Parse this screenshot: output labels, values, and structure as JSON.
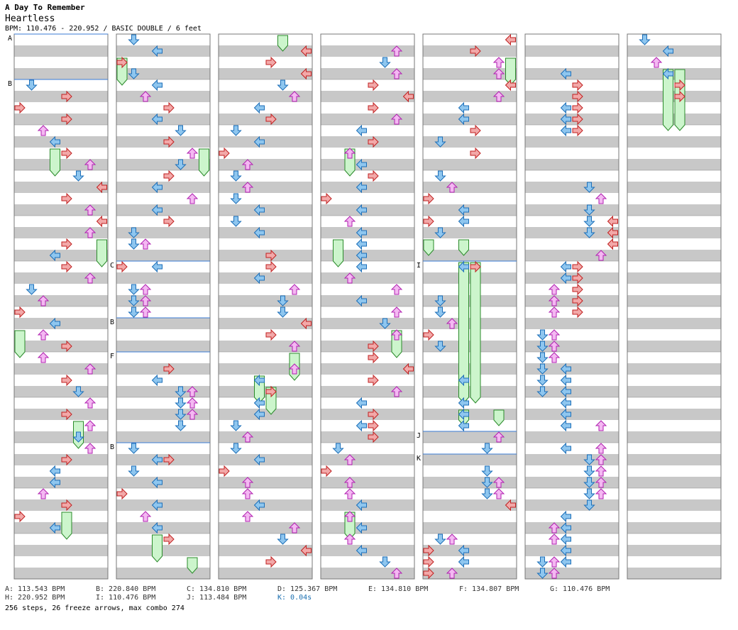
{
  "header": {
    "artist": "A Day To Remember",
    "title": "Heartless",
    "bpm_info": "BPM: 110.476 - 220.952 / BASIC DOUBLE / 6 feet"
  },
  "colors": {
    "stripe": "#c8c8c8",
    "border": "#777777",
    "marker_line": "#3a7bd5",
    "arrow_red": "#f2a8a8",
    "arrow_red_stroke": "#c02020",
    "arrow_blue": "#8ec6ef",
    "arrow_blue_stroke": "#1d6fb8",
    "arrow_pink": "#f4b8f2",
    "arrow_pink_stroke": "#b020b0",
    "freeze": "#ccf5cc",
    "freeze_stroke": "#2a8a2a"
  },
  "columns": [
    {
      "markers": [
        {
          "label": "A",
          "beat": 0
        },
        {
          "label": "B",
          "beat": 4
        }
      ],
      "notes": [
        [
          4.5,
          1
        ],
        [
          5.5,
          4
        ],
        [
          6.5,
          0
        ],
        [
          7.5,
          4
        ],
        [
          8.5,
          2
        ],
        [
          9.5,
          3
        ],
        [
          10.5,
          4
        ],
        [
          11.5,
          6
        ],
        [
          12.5,
          5
        ],
        [
          13.5,
          7
        ],
        [
          14.5,
          4
        ],
        [
          15.5,
          6
        ],
        [
          16.5,
          7
        ],
        [
          17.5,
          6
        ],
        [
          18.5,
          4
        ],
        [
          19.5,
          3
        ],
        [
          20.5,
          4
        ],
        [
          21.5,
          6
        ],
        [
          22.5,
          1
        ],
        [
          23.5,
          2
        ],
        [
          24.5,
          0
        ],
        [
          25.5,
          3
        ],
        [
          26.5,
          2
        ],
        [
          27.5,
          4
        ],
        [
          28.5,
          2
        ],
        [
          29.5,
          6
        ],
        [
          30.5,
          4
        ],
        [
          31.5,
          5
        ],
        [
          32.5,
          6
        ],
        [
          33.5,
          4
        ],
        [
          34.5,
          6
        ],
        [
          35.5,
          5
        ],
        [
          36.5,
          6
        ],
        [
          37.5,
          4
        ],
        [
          38.5,
          3
        ],
        [
          39.5,
          3
        ],
        [
          40.5,
          2
        ],
        [
          41.5,
          4
        ],
        [
          42.5,
          0
        ],
        [
          43.5,
          3
        ]
      ],
      "freezes": [
        [
          10,
          12.5,
          3
        ],
        [
          18,
          20.5,
          7
        ],
        [
          26,
          28.5,
          0
        ],
        [
          34,
          36.5,
          5
        ],
        [
          42,
          44.5,
          4
        ]
      ]
    },
    {
      "markers": [
        {
          "label": "C",
          "beat": 20
        },
        {
          "label": "B",
          "beat": 25
        },
        {
          "label": "F",
          "beat": 28
        },
        {
          "label": "B",
          "beat": 36
        }
      ],
      "notes": [
        [
          0.5,
          1
        ],
        [
          1.5,
          3
        ],
        [
          2.5,
          0
        ],
        [
          3.5,
          1
        ],
        [
          4.5,
          3
        ],
        [
          5.5,
          2
        ],
        [
          6.5,
          4
        ],
        [
          7.5,
          3
        ],
        [
          8.5,
          5
        ],
        [
          9.5,
          4
        ],
        [
          10.5,
          6
        ],
        [
          11.5,
          5
        ],
        [
          12.5,
          4
        ],
        [
          13.5,
          3
        ],
        [
          14.5,
          6
        ],
        [
          15.5,
          3
        ],
        [
          16.5,
          4
        ],
        [
          17.5,
          1
        ],
        [
          18.5,
          1
        ],
        [
          18.5,
          2
        ],
        [
          20.5,
          0
        ],
        [
          20.5,
          3
        ],
        [
          22.5,
          1
        ],
        [
          22.5,
          2
        ],
        [
          23.5,
          1
        ],
        [
          23.5,
          2
        ],
        [
          24.5,
          1
        ],
        [
          24.5,
          2
        ],
        [
          29.5,
          4
        ],
        [
          30.5,
          3
        ],
        [
          31.5,
          5
        ],
        [
          31.5,
          6
        ],
        [
          32.5,
          5
        ],
        [
          32.5,
          6
        ],
        [
          33.5,
          5
        ],
        [
          33.5,
          6
        ],
        [
          34.5,
          5
        ],
        [
          36.5,
          1
        ],
        [
          37.5,
          3
        ],
        [
          37.5,
          4
        ],
        [
          38.5,
          1
        ],
        [
          39.5,
          3
        ],
        [
          40.5,
          0
        ],
        [
          41.5,
          3
        ],
        [
          42.5,
          2
        ],
        [
          43.5,
          3
        ],
        [
          44.5,
          4
        ]
      ],
      "freezes": [
        [
          2,
          4.5,
          0
        ],
        [
          10,
          12.5,
          7
        ],
        [
          44,
          46.5,
          3
        ],
        [
          46,
          47.5,
          6
        ]
      ]
    },
    {
      "markers": [],
      "notes": [
        [
          1.5,
          7
        ],
        [
          2.5,
          4
        ],
        [
          3.5,
          7
        ],
        [
          4.5,
          5
        ],
        [
          5.5,
          6
        ],
        [
          6.5,
          3
        ],
        [
          7.5,
          4
        ],
        [
          8.5,
          1
        ],
        [
          9.5,
          3
        ],
        [
          10.5,
          0
        ],
        [
          11.5,
          2
        ],
        [
          12.5,
          1
        ],
        [
          13.5,
          2
        ],
        [
          14.5,
          1
        ],
        [
          15.5,
          3
        ],
        [
          16.5,
          1
        ],
        [
          17.5,
          3
        ],
        [
          19.5,
          4
        ],
        [
          20.5,
          4
        ],
        [
          21.5,
          3
        ],
        [
          22.5,
          6
        ],
        [
          23.5,
          5
        ],
        [
          24.5,
          5
        ],
        [
          25.5,
          7
        ],
        [
          26.5,
          4
        ],
        [
          27.5,
          6
        ],
        [
          29.5,
          6
        ],
        [
          30.5,
          3
        ],
        [
          31.5,
          4
        ],
        [
          32.5,
          3
        ],
        [
          33.5,
          3
        ],
        [
          34.5,
          1
        ],
        [
          35.5,
          2
        ],
        [
          36.5,
          1
        ],
        [
          37.5,
          3
        ],
        [
          38.5,
          0
        ],
        [
          39.5,
          2
        ],
        [
          40.5,
          2
        ],
        [
          41.5,
          3
        ],
        [
          42.5,
          2
        ],
        [
          43.5,
          6
        ],
        [
          44.5,
          5
        ],
        [
          45.5,
          7
        ],
        [
          46.5,
          4
        ]
      ],
      "freezes": [
        [
          0,
          1.5,
          5
        ],
        [
          28,
          30.5,
          6
        ],
        [
          30,
          32.5,
          3
        ],
        [
          31,
          33.5,
          4
        ]
      ]
    },
    {
      "markers": [],
      "notes": [
        [
          1.5,
          6
        ],
        [
          2.5,
          5
        ],
        [
          3.5,
          6
        ],
        [
          4.5,
          4
        ],
        [
          5.5,
          7
        ],
        [
          6.5,
          4
        ],
        [
          7.5,
          6
        ],
        [
          8.5,
          3
        ],
        [
          9.5,
          4
        ],
        [
          10.5,
          2
        ],
        [
          11.5,
          3
        ],
        [
          12.5,
          4
        ],
        [
          13.5,
          3
        ],
        [
          14.5,
          0
        ],
        [
          15.5,
          3
        ],
        [
          16.5,
          2
        ],
        [
          17.5,
          3
        ],
        [
          18.5,
          3
        ],
        [
          19.5,
          3
        ],
        [
          20.5,
          3
        ],
        [
          21.5,
          2
        ],
        [
          22.5,
          6
        ],
        [
          23.5,
          3
        ],
        [
          24.5,
          6
        ],
        [
          25.5,
          5
        ],
        [
          26.5,
          6
        ],
        [
          27.5,
          4
        ],
        [
          28.5,
          4
        ],
        [
          29.5,
          7
        ],
        [
          30.5,
          4
        ],
        [
          31.5,
          6
        ],
        [
          32.5,
          3
        ],
        [
          33.5,
          4
        ],
        [
          34.5,
          3
        ],
        [
          34.5,
          4
        ],
        [
          35.5,
          4
        ],
        [
          36.5,
          1
        ],
        [
          37.5,
          2
        ],
        [
          38.5,
          0
        ],
        [
          39.5,
          2
        ],
        [
          40.5,
          2
        ],
        [
          41.5,
          3
        ],
        [
          42.5,
          2
        ],
        [
          43.5,
          3
        ],
        [
          44.5,
          2
        ],
        [
          45.5,
          3
        ],
        [
          46.5,
          5
        ],
        [
          47.5,
          6
        ]
      ],
      "freezes": [
        [
          10,
          12.5,
          2
        ],
        [
          18,
          20.5,
          1
        ],
        [
          26,
          28.5,
          6
        ],
        [
          42,
          44.5,
          2
        ]
      ]
    },
    {
      "markers": [
        {
          "label": "I",
          "beat": 20
        },
        {
          "label": "J",
          "beat": 35
        },
        {
          "label": "K",
          "beat": 37
        }
      ],
      "notes": [
        [
          0.5,
          7
        ],
        [
          1.5,
          4
        ],
        [
          2.5,
          6
        ],
        [
          3.5,
          6
        ],
        [
          4.5,
          7
        ],
        [
          5.5,
          6
        ],
        [
          6.5,
          3
        ],
        [
          7.5,
          3
        ],
        [
          8.5,
          4
        ],
        [
          9.5,
          1
        ],
        [
          10.5,
          4
        ],
        [
          12.5,
          1
        ],
        [
          13.5,
          2
        ],
        [
          14.5,
          0
        ],
        [
          15.5,
          3
        ],
        [
          16.5,
          0
        ],
        [
          16.5,
          3
        ],
        [
          17.5,
          1
        ],
        [
          20.5,
          3
        ],
        [
          20.5,
          4
        ],
        [
          23.5,
          1
        ],
        [
          24.5,
          1
        ],
        [
          25.5,
          2
        ],
        [
          26.5,
          0
        ],
        [
          27.5,
          1
        ],
        [
          30.5,
          3
        ],
        [
          32.5,
          3
        ],
        [
          33.5,
          3
        ],
        [
          34.5,
          3
        ],
        [
          35.5,
          6
        ],
        [
          36.5,
          5
        ],
        [
          38.5,
          5
        ],
        [
          39.5,
          5
        ],
        [
          39.5,
          6
        ],
        [
          40.5,
          5
        ],
        [
          40.5,
          6
        ],
        [
          41.5,
          7
        ],
        [
          44.5,
          1
        ],
        [
          44.5,
          2
        ],
        [
          45.5,
          0
        ],
        [
          45.5,
          3
        ],
        [
          46.5,
          0
        ],
        [
          46.5,
          3
        ],
        [
          47.5,
          0
        ],
        [
          47.5,
          2
        ]
      ],
      "freezes": [
        [
          2,
          4.5,
          7
        ],
        [
          18,
          19.5,
          0
        ],
        [
          18,
          19.5,
          3
        ],
        [
          20,
          32.5,
          3
        ],
        [
          20,
          32.5,
          4
        ],
        [
          33,
          34.5,
          3
        ],
        [
          33,
          34.5,
          6
        ]
      ]
    },
    {
      "markers": [],
      "notes": [
        [
          3.5,
          3
        ],
        [
          4.5,
          4
        ],
        [
          5.5,
          4
        ],
        [
          6.5,
          3
        ],
        [
          6.5,
          4
        ],
        [
          7.5,
          3
        ],
        [
          7.5,
          4
        ],
        [
          8.5,
          3
        ],
        [
          8.5,
          4
        ],
        [
          13.5,
          5
        ],
        [
          14.5,
          6
        ],
        [
          15.5,
          5
        ],
        [
          16.5,
          5
        ],
        [
          16.5,
          7
        ],
        [
          17.5,
          5
        ],
        [
          17.5,
          7
        ],
        [
          18.5,
          7
        ],
        [
          19.5,
          6
        ],
        [
          20.5,
          3
        ],
        [
          20.5,
          4
        ],
        [
          21.5,
          3
        ],
        [
          21.5,
          4
        ],
        [
          22.5,
          2
        ],
        [
          22.5,
          4
        ],
        [
          23.5,
          2
        ],
        [
          23.5,
          4
        ],
        [
          24.5,
          2
        ],
        [
          24.5,
          4
        ],
        [
          26.5,
          1
        ],
        [
          26.5,
          2
        ],
        [
          27.5,
          1
        ],
        [
          27.5,
          2
        ],
        [
          28.5,
          1
        ],
        [
          28.5,
          2
        ],
        [
          29.5,
          1
        ],
        [
          29.5,
          3
        ],
        [
          30.5,
          1
        ],
        [
          30.5,
          3
        ],
        [
          31.5,
          1
        ],
        [
          31.5,
          3
        ],
        [
          32.5,
          3
        ],
        [
          33.5,
          3
        ],
        [
          34.5,
          3
        ],
        [
          34.5,
          6
        ],
        [
          36.5,
          3
        ],
        [
          36.5,
          6
        ],
        [
          37.5,
          5
        ],
        [
          37.5,
          6
        ],
        [
          38.5,
          5
        ],
        [
          38.5,
          6
        ],
        [
          39.5,
          5
        ],
        [
          39.5,
          6
        ],
        [
          40.5,
          5
        ],
        [
          40.5,
          6
        ],
        [
          41.5,
          5
        ],
        [
          42.5,
          3
        ],
        [
          43.5,
          2
        ],
        [
          43.5,
          3
        ],
        [
          44.5,
          2
        ],
        [
          44.5,
          3
        ],
        [
          45.5,
          3
        ],
        [
          46.5,
          1
        ],
        [
          46.5,
          2
        ],
        [
          46.5,
          3
        ],
        [
          47.5,
          1
        ],
        [
          47.5,
          2
        ]
      ],
      "freezes": []
    },
    {
      "markers": [],
      "notes": [
        [
          0.5,
          1
        ],
        [
          1.5,
          3
        ],
        [
          2.5,
          2
        ],
        [
          3.5,
          3
        ],
        [
          4.5,
          4
        ],
        [
          5.5,
          4
        ]
      ],
      "freezes": [
        [
          3,
          8.5,
          3
        ],
        [
          3,
          8.5,
          4
        ]
      ]
    }
  ],
  "note_kinds": {
    "0": "red",
    "1": "blue",
    "2": "pink",
    "3": "blue",
    "4": "red",
    "5": "blue",
    "6": "pink",
    "7": "red"
  },
  "legend": [
    {
      "text": "A: 113.543 BPM",
      "row": 0,
      "col": 0,
      "color": "normal"
    },
    {
      "text": "B: 220.840 BPM",
      "row": 0,
      "col": 1,
      "color": "normal"
    },
    {
      "text": "C: 134.810 BPM",
      "row": 0,
      "col": 2,
      "color": "normal"
    },
    {
      "text": "D: 125.367 BPM",
      "row": 0,
      "col": 3,
      "color": "normal"
    },
    {
      "text": "E: 134.810 BPM",
      "row": 0,
      "col": 4,
      "color": "normal"
    },
    {
      "text": "F: 134.807 BPM",
      "row": 0,
      "col": 5,
      "color": "normal"
    },
    {
      "text": "G: 110.476 BPM",
      "row": 0,
      "col": 6,
      "color": "normal"
    },
    {
      "text": "H: 220.952 BPM",
      "row": 1,
      "col": 0,
      "color": "normal"
    },
    {
      "text": "I: 110.476 BPM",
      "row": 1,
      "col": 1,
      "color": "normal"
    },
    {
      "text": "J: 113.484 BPM",
      "row": 1,
      "col": 2,
      "color": "normal"
    },
    {
      "text": "K: 0.04s",
      "row": 1,
      "col": 3,
      "color": "blue"
    }
  ],
  "summary": "256 steps, 26 freeze arrows, max combo 274"
}
